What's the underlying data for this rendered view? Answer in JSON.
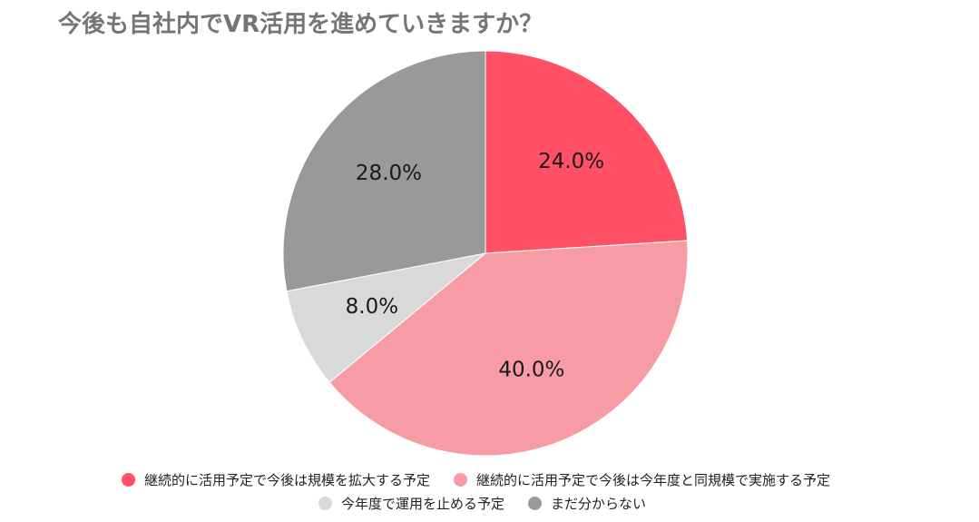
{
  "chart_data": {
    "type": "pie",
    "title": "今後も自社内でVR活用を進めていきますか？",
    "categories": [
      "継続的に活用予定で今後は規模を拡大する予定",
      "継続的に活用予定で今後は今年度と同規模で実施する予定",
      "今年度で運用を止める予定",
      "まだ分からない"
    ],
    "values": [
      24.0,
      40.0,
      8.0,
      28.0
    ],
    "labels": [
      "24.0%",
      "40.0%",
      "8.0%",
      "28.0%"
    ],
    "colors": [
      "#ff5065",
      "#f79ca5",
      "#d9d9d9",
      "#999999"
    ],
    "start_angle": "12 o'clock",
    "direction": "clockwise",
    "legend_position": "bottom"
  }
}
